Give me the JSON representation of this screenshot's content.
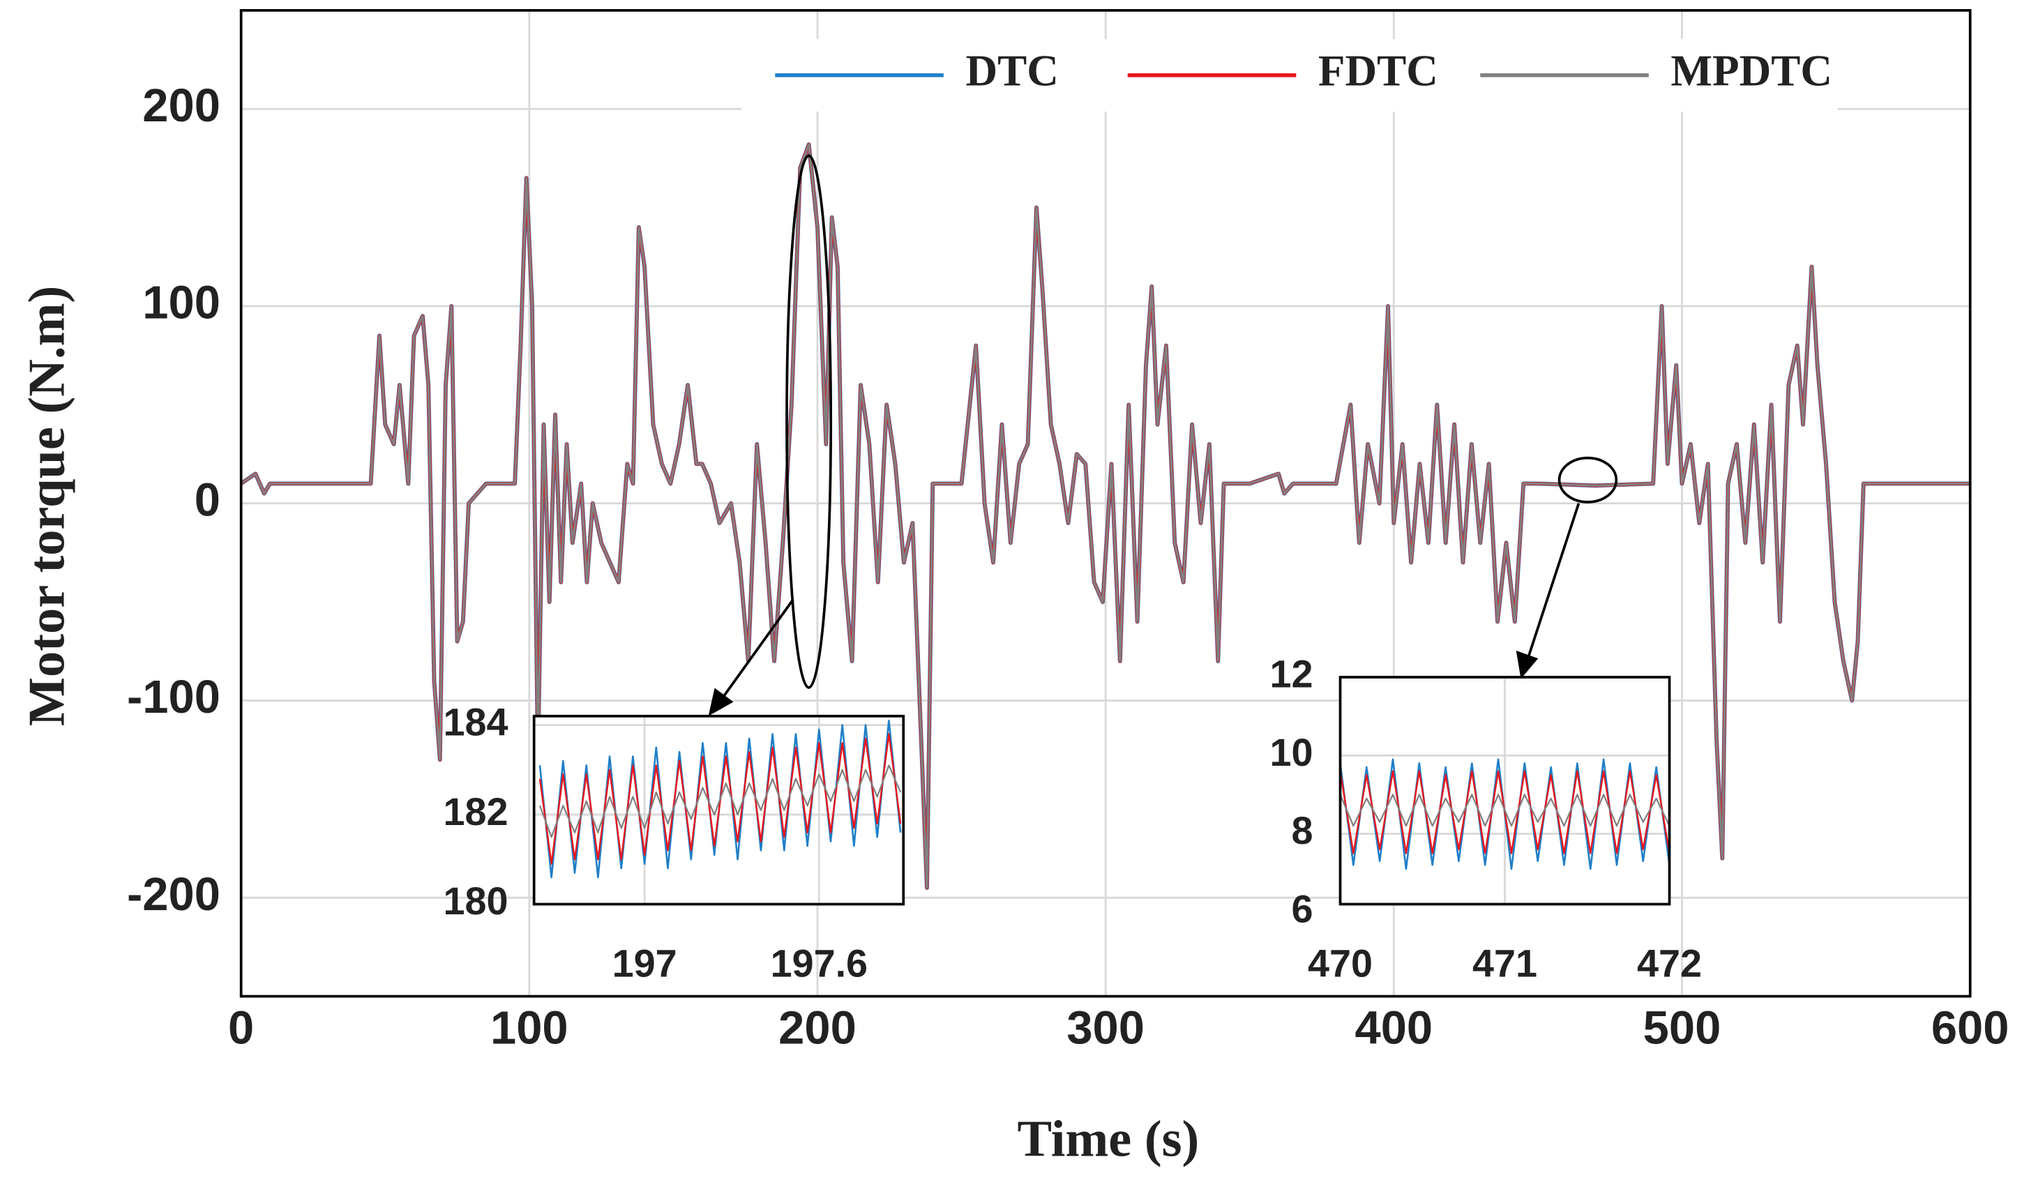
{
  "chart_data": [
    {
      "type": "line",
      "x_label": "Time (s)",
      "y_label": "Motor torque (N.m)",
      "grid": true,
      "legend": "upper right",
      "xlim": [
        0,
        600
      ],
      "ylim": [
        -250,
        250
      ],
      "xticks": [
        0,
        100,
        200,
        300,
        400,
        500,
        600
      ],
      "yticks": [
        -200,
        -100,
        0,
        100,
        200
      ],
      "x": [
        0,
        5,
        8,
        10,
        45,
        48,
        50,
        53,
        55,
        58,
        60,
        63,
        65,
        67,
        69,
        71,
        73,
        75,
        77,
        79,
        82,
        85,
        95,
        97,
        99,
        101,
        103,
        105,
        107,
        109,
        111,
        113,
        115,
        118,
        120,
        122,
        125,
        128,
        131,
        134,
        136,
        138,
        140,
        143,
        146,
        149,
        152,
        155,
        158,
        160,
        163,
        166,
        170,
        173,
        176,
        179,
        182,
        185,
        188,
        191,
        194,
        197,
        200,
        203,
        205,
        207,
        209,
        212,
        215,
        218,
        221,
        224,
        227,
        230,
        233,
        236,
        238,
        240,
        250,
        255,
        258,
        261,
        264,
        267,
        270,
        273,
        276,
        278,
        281,
        284,
        287,
        290,
        293,
        296,
        299,
        302,
        305,
        308,
        311,
        314,
        316,
        318,
        321,
        324,
        327,
        330,
        333,
        336,
        339,
        341,
        350,
        360,
        362,
        365,
        380,
        385,
        388,
        391,
        395,
        398,
        400,
        403,
        406,
        409,
        412,
        415,
        418,
        421,
        424,
        427,
        430,
        433,
        436,
        439,
        442,
        445,
        450,
        470,
        490,
        493,
        495,
        498,
        500,
        503,
        506,
        509,
        512,
        514,
        516,
        519,
        522,
        525,
        528,
        531,
        534,
        537,
        540,
        542,
        545,
        547,
        550,
        553,
        556,
        559,
        561,
        563,
        600
      ],
      "series": [
        {
          "name": "DTC",
          "color": "#1f7fc8",
          "values": [
            10,
            15,
            5,
            10,
            10,
            85,
            40,
            30,
            60,
            10,
            85,
            95,
            60,
            -90,
            -130,
            60,
            100,
            -70,
            -60,
            0,
            5,
            10,
            10,
            80,
            165,
            100,
            -130,
            40,
            -50,
            45,
            -40,
            30,
            -20,
            10,
            -40,
            0,
            -20,
            -30,
            -40,
            20,
            10,
            140,
            120,
            40,
            20,
            10,
            30,
            60,
            20,
            20,
            10,
            -10,
            0,
            -30,
            -80,
            30,
            -20,
            -80,
            -20,
            50,
            170,
            182,
            140,
            30,
            145,
            120,
            -30,
            -80,
            60,
            30,
            -40,
            50,
            20,
            -30,
            -10,
            -120,
            -195,
            10,
            10,
            80,
            0,
            -30,
            40,
            -20,
            20,
            30,
            150,
            110,
            40,
            20,
            -10,
            25,
            20,
            -40,
            -50,
            20,
            -80,
            50,
            -60,
            70,
            110,
            40,
            80,
            -20,
            -40,
            40,
            -10,
            30,
            -80,
            10,
            10,
            15,
            5,
            10,
            10,
            50,
            -20,
            30,
            0,
            100,
            -10,
            30,
            -30,
            20,
            -20,
            50,
            -20,
            40,
            -30,
            30,
            -20,
            20,
            -60,
            -20,
            -60,
            10,
            10,
            9,
            10,
            100,
            20,
            70,
            10,
            30,
            -10,
            20,
            -120,
            -180,
            10,
            30,
            -20,
            40,
            -30,
            50,
            -60,
            60,
            80,
            40,
            120,
            70,
            20,
            -50,
            -80,
            -100,
            -70,
            10,
            10
          ]
        },
        {
          "name": "FDTC",
          "color": "#e8151b",
          "values": [
            10,
            15,
            5,
            10,
            10,
            85,
            40,
            30,
            60,
            10,
            85,
            95,
            60,
            -90,
            -130,
            60,
            100,
            -70,
            -60,
            0,
            5,
            10,
            10,
            80,
            165,
            100,
            -130,
            40,
            -50,
            45,
            -40,
            30,
            -20,
            10,
            -40,
            0,
            -20,
            -30,
            -40,
            20,
            10,
            140,
            120,
            40,
            20,
            10,
            30,
            60,
            20,
            20,
            10,
            -10,
            0,
            -30,
            -80,
            30,
            -20,
            -80,
            -20,
            50,
            170,
            182,
            140,
            30,
            145,
            120,
            -30,
            -80,
            60,
            30,
            -40,
            50,
            20,
            -30,
            -10,
            -120,
            -195,
            10,
            10,
            80,
            0,
            -30,
            40,
            -20,
            20,
            30,
            150,
            110,
            40,
            20,
            -10,
            25,
            20,
            -40,
            -50,
            20,
            -80,
            50,
            -60,
            70,
            110,
            40,
            80,
            -20,
            -40,
            40,
            -10,
            30,
            -80,
            10,
            10,
            15,
            5,
            10,
            10,
            50,
            -20,
            30,
            0,
            100,
            -10,
            30,
            -30,
            20,
            -20,
            50,
            -20,
            40,
            -30,
            30,
            -20,
            20,
            -60,
            -20,
            -60,
            10,
            10,
            9,
            10,
            100,
            20,
            70,
            10,
            30,
            -10,
            20,
            -120,
            -180,
            10,
            30,
            -20,
            40,
            -30,
            50,
            -60,
            60,
            80,
            40,
            120,
            70,
            20,
            -50,
            -80,
            -100,
            -70,
            10,
            10
          ]
        },
        {
          "name": "MPDTC",
          "color": "#808080",
          "values": [
            10,
            15,
            5,
            10,
            10,
            85,
            40,
            30,
            60,
            10,
            85,
            95,
            60,
            -90,
            -130,
            60,
            100,
            -70,
            -60,
            0,
            5,
            10,
            10,
            80,
            165,
            100,
            -130,
            40,
            -50,
            45,
            -40,
            30,
            -20,
            10,
            -40,
            0,
            -20,
            -30,
            -40,
            20,
            10,
            140,
            120,
            40,
            20,
            10,
            30,
            60,
            20,
            20,
            10,
            -10,
            0,
            -30,
            -80,
            30,
            -20,
            -80,
            -20,
            50,
            170,
            182,
            140,
            30,
            145,
            120,
            -30,
            -80,
            60,
            30,
            -40,
            50,
            20,
            -30,
            -10,
            -120,
            -195,
            10,
            10,
            80,
            0,
            -30,
            40,
            -20,
            20,
            30,
            150,
            110,
            40,
            20,
            -10,
            25,
            20,
            -40,
            -50,
            20,
            -80,
            50,
            -60,
            70,
            110,
            40,
            80,
            -20,
            -40,
            40,
            -10,
            30,
            -80,
            10,
            10,
            15,
            5,
            10,
            10,
            50,
            -20,
            30,
            0,
            100,
            -10,
            30,
            -30,
            20,
            -20,
            50,
            -20,
            40,
            -30,
            30,
            -20,
            20,
            -60,
            -20,
            -60,
            10,
            10,
            9,
            10,
            100,
            20,
            70,
            10,
            30,
            -10,
            20,
            -120,
            -180,
            10,
            30,
            -20,
            40,
            -30,
            50,
            -60,
            60,
            80,
            40,
            120,
            70,
            20,
            -50,
            -80,
            -100,
            -70,
            10,
            10
          ]
        }
      ]
    },
    {
      "type": "line",
      "grid": true,
      "xlim": [
        196.62,
        197.89
      ],
      "ylim": [
        180,
        184.2
      ],
      "xticks": [
        197,
        197.6
      ],
      "yticks": [
        180,
        182,
        184
      ],
      "x": [
        196.64,
        196.68,
        196.72,
        196.76,
        196.8,
        196.84,
        196.88,
        196.92,
        196.96,
        197,
        197.04,
        197.08,
        197.12,
        197.16,
        197.2,
        197.24,
        197.28,
        197.32,
        197.36,
        197.4,
        197.44,
        197.48,
        197.52,
        197.56,
        197.6,
        197.64,
        197.68,
        197.72,
        197.76,
        197.8,
        197.84,
        197.88
      ],
      "series": [
        {
          "color": "#1f7fc8",
          "values": [
            183.1,
            180.6,
            183.2,
            180.7,
            183.1,
            180.6,
            183.3,
            180.8,
            183.3,
            180.9,
            183.5,
            180.8,
            183.4,
            181.0,
            183.6,
            181.1,
            183.6,
            181.0,
            183.7,
            181.2,
            183.8,
            181.2,
            183.8,
            181.3,
            183.9,
            181.4,
            184.0,
            181.3,
            184.0,
            181.5,
            184.1,
            181.6
          ]
        },
        {
          "color": "#e8151b",
          "values": [
            182.8,
            180.9,
            182.9,
            181.0,
            182.9,
            181.0,
            183.0,
            181.0,
            183.1,
            181.1,
            183.1,
            181.2,
            183.2,
            181.2,
            183.3,
            181.3,
            183.3,
            181.4,
            183.4,
            181.4,
            183.5,
            181.5,
            183.5,
            181.6,
            183.6,
            181.6,
            183.6,
            181.7,
            183.7,
            181.8,
            183.8,
            181.8
          ]
        },
        {
          "color": "#808080",
          "values": [
            182.2,
            181.5,
            182.2,
            181.6,
            182.3,
            181.6,
            182.4,
            181.7,
            182.4,
            181.7,
            182.5,
            181.8,
            182.5,
            181.9,
            182.6,
            182.0,
            182.7,
            182.0,
            182.7,
            182.1,
            182.8,
            182.1,
            182.8,
            182.2,
            182.9,
            182.3,
            183.0,
            182.3,
            183.0,
            182.4,
            183.1,
            182.5
          ]
        }
      ]
    },
    {
      "type": "line",
      "grid": true,
      "xlim": [
        470,
        472
      ],
      "ylim": [
        6.2,
        12
      ],
      "xticks": [
        470,
        471,
        472
      ],
      "yticks": [
        6,
        8,
        10,
        12
      ],
      "x": [
        470,
        470.08,
        470.16,
        470.24,
        470.32,
        470.4,
        470.48,
        470.56,
        470.64,
        470.72,
        470.8,
        470.88,
        470.96,
        471.04,
        471.12,
        471.2,
        471.28,
        471.36,
        471.44,
        471.52,
        471.6,
        471.68,
        471.76,
        471.84,
        471.92,
        472
      ],
      "series": [
        {
          "color": "#1f7fc8",
          "values": [
            9.8,
            7.2,
            9.7,
            7.3,
            9.9,
            7.1,
            9.8,
            7.2,
            9.7,
            7.3,
            9.8,
            7.2,
            9.9,
            7.1,
            9.8,
            7.3,
            9.7,
            7.2,
            9.8,
            7.1,
            9.9,
            7.2,
            9.8,
            7.3,
            9.7,
            7.2
          ]
        },
        {
          "color": "#e8151b",
          "values": [
            9.6,
            7.5,
            9.5,
            7.6,
            9.6,
            7.5,
            9.6,
            7.5,
            9.5,
            7.6,
            9.6,
            7.5,
            9.6,
            7.5,
            9.6,
            7.6,
            9.5,
            7.5,
            9.6,
            7.5,
            9.6,
            7.5,
            9.6,
            7.6,
            9.5,
            7.5
          ]
        },
        {
          "color": "#808080",
          "values": [
            9.0,
            8.2,
            8.9,
            8.3,
            9.0,
            8.2,
            9.0,
            8.2,
            8.9,
            8.3,
            9.0,
            8.2,
            9.0,
            8.2,
            9.0,
            8.3,
            8.9,
            8.2,
            9.0,
            8.2,
            9.0,
            8.2,
            9.0,
            8.3,
            8.9,
            8.2
          ]
        }
      ]
    }
  ]
}
